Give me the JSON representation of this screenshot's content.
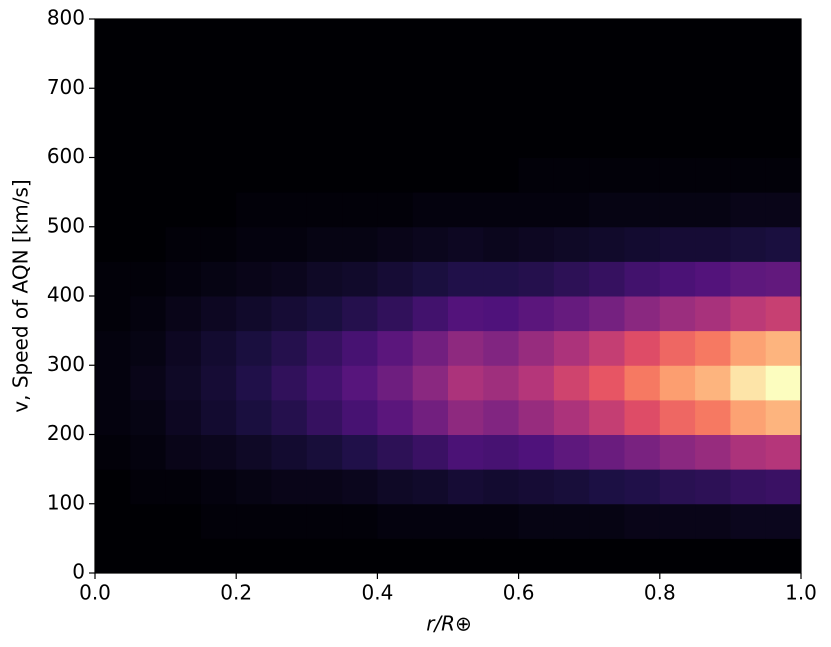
{
  "chart_data": {
    "type": "heatmap",
    "x_label": "r/R⊕",
    "y_label": "v, Speed of AQN [km/s]",
    "colormap": "magma",
    "xlim": [
      0,
      1
    ],
    "ylim": [
      0,
      800
    ],
    "xticks": [
      {
        "value": 0,
        "label": "0.0"
      },
      {
        "value": 0.2,
        "label": "0.2"
      },
      {
        "value": 0.4,
        "label": "0.4"
      },
      {
        "value": 0.6,
        "label": "0.6"
      },
      {
        "value": 0.8,
        "label": "0.8"
      },
      {
        "value": 1,
        "label": "1.0"
      }
    ],
    "yticks": [
      0,
      100,
      200,
      300,
      400,
      500,
      600,
      700,
      800
    ],
    "x_bins": [
      0,
      0.05,
      0.1,
      0.15,
      0.2,
      0.25,
      0.3,
      0.35,
      0.4,
      0.45,
      0.5,
      0.55,
      0.6,
      0.65,
      0.7,
      0.75,
      0.8,
      0.85,
      0.9,
      0.95,
      1
    ],
    "y_bins": [
      0,
      50,
      100,
      150,
      200,
      250,
      300,
      350,
      400,
      450,
      500,
      550,
      600,
      650,
      700,
      750,
      800
    ],
    "z": [
      [
        0,
        0,
        0,
        0.01,
        0.02,
        0.02,
        0.02,
        0.01,
        0.01,
        0,
        0,
        0,
        0,
        0,
        0,
        0
      ],
      [
        0,
        0,
        0.01,
        0.02,
        0.03,
        0.04,
        0.03,
        0.02,
        0.01,
        0,
        0,
        0,
        0,
        0,
        0,
        0
      ],
      [
        0,
        0,
        0.01,
        0.04,
        0.06,
        0.07,
        0.06,
        0.04,
        0.02,
        0.01,
        0,
        0,
        0,
        0,
        0,
        0
      ],
      [
        0,
        0.01,
        0.02,
        0.05,
        0.09,
        0.1,
        0.09,
        0.06,
        0.03,
        0.01,
        0,
        0,
        0,
        0,
        0,
        0
      ],
      [
        0,
        0.01,
        0.03,
        0.07,
        0.12,
        0.14,
        0.12,
        0.08,
        0.04,
        0.02,
        0.01,
        0,
        0,
        0,
        0,
        0
      ],
      [
        0,
        0.01,
        0.04,
        0.09,
        0.15,
        0.18,
        0.15,
        0.1,
        0.05,
        0.02,
        0.01,
        0,
        0,
        0,
        0,
        0
      ],
      [
        0,
        0.01,
        0.04,
        0.11,
        0.19,
        0.22,
        0.19,
        0.12,
        0.07,
        0.03,
        0.01,
        0,
        0,
        0,
        0,
        0
      ],
      [
        0,
        0.01,
        0.05,
        0.14,
        0.23,
        0.27,
        0.23,
        0.15,
        0.08,
        0.03,
        0.01,
        0,
        0,
        0,
        0,
        0
      ],
      [
        0,
        0.02,
        0.07,
        0.17,
        0.28,
        0.33,
        0.28,
        0.18,
        0.1,
        0.04,
        0.01,
        0,
        0,
        0,
        0,
        0
      ],
      [
        0,
        0.02,
        0.08,
        0.2,
        0.34,
        0.4,
        0.34,
        0.22,
        0.12,
        0.05,
        0.02,
        0,
        0,
        0,
        0,
        0
      ],
      [
        0,
        0.02,
        0.1,
        0.24,
        0.41,
        0.48,
        0.41,
        0.26,
        0.14,
        0.06,
        0.02,
        0,
        0,
        0,
        0,
        0
      ],
      [
        0,
        0.02,
        0.09,
        0.23,
        0.38,
        0.45,
        0.38,
        0.25,
        0.14,
        0.05,
        0.02,
        0,
        0,
        0,
        0,
        0
      ],
      [
        0,
        0.03,
        0.1,
        0.25,
        0.43,
        0.5,
        0.43,
        0.28,
        0.15,
        0.06,
        0.02,
        0.01,
        0,
        0,
        0,
        0
      ],
      [
        0,
        0.03,
        0.11,
        0.29,
        0.48,
        0.57,
        0.48,
        0.31,
        0.17,
        0.07,
        0.02,
        0.01,
        0,
        0,
        0,
        0
      ],
      [
        0,
        0.03,
        0.13,
        0.32,
        0.54,
        0.64,
        0.54,
        0.35,
        0.19,
        0.08,
        0.03,
        0.01,
        0,
        0,
        0,
        0
      ],
      [
        0,
        0.04,
        0.14,
        0.36,
        0.61,
        0.72,
        0.61,
        0.4,
        0.22,
        0.09,
        0.03,
        0.01,
        0,
        0,
        0,
        0
      ],
      [
        0,
        0.04,
        0.16,
        0.4,
        0.68,
        0.8,
        0.68,
        0.44,
        0.24,
        0.1,
        0.03,
        0.01,
        0,
        0,
        0,
        0
      ],
      [
        0,
        0.04,
        0.17,
        0.43,
        0.72,
        0.85,
        0.72,
        0.47,
        0.26,
        0.1,
        0.03,
        0.01,
        0,
        0,
        0,
        0
      ],
      [
        0,
        0.05,
        0.19,
        0.48,
        0.81,
        0.95,
        0.81,
        0.52,
        0.29,
        0.11,
        0.04,
        0.01,
        0,
        0,
        0,
        0
      ],
      [
        0,
        0.05,
        0.2,
        0.5,
        0.85,
        1,
        0.85,
        0.55,
        0.3,
        0.12,
        0.04,
        0.01,
        0,
        0,
        0,
        0
      ]
    ]
  }
}
